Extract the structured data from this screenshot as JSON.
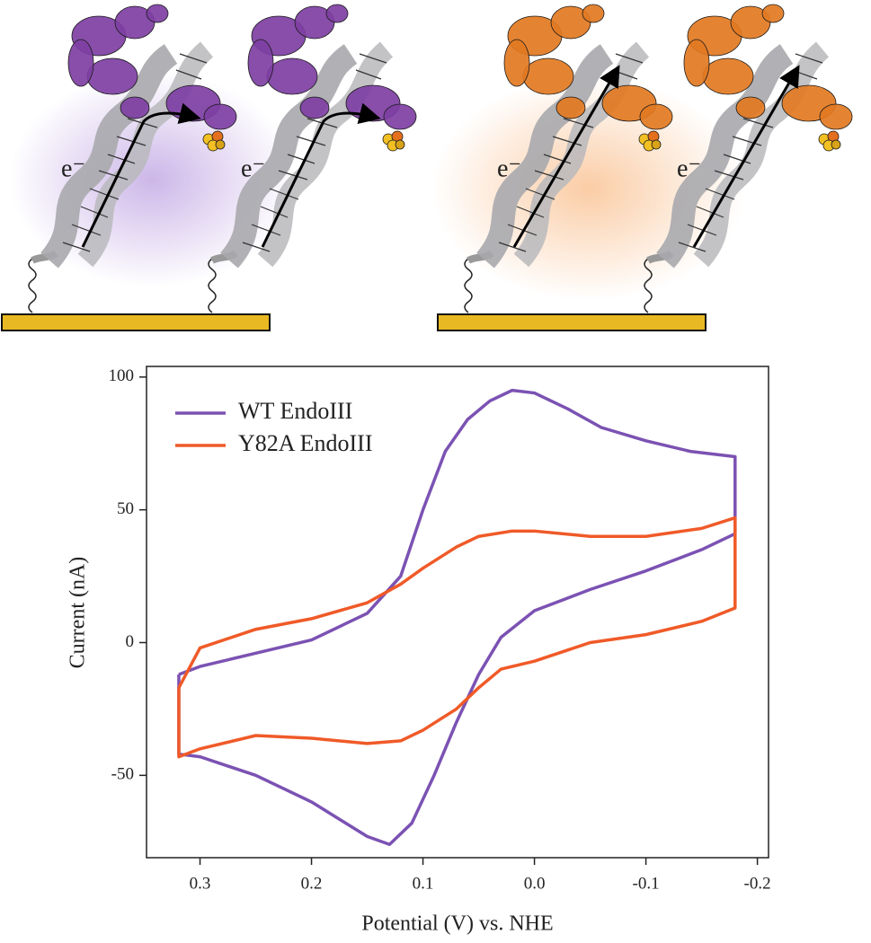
{
  "illustration": {
    "electron_labels": [
      "e⁻",
      "e⁻",
      "e⁻",
      "e⁻"
    ]
  },
  "chart_data": {
    "type": "line",
    "xlabel": "Potential (V) vs. NHE",
    "ylabel": "Current (nA)",
    "xlim": [
      0.348,
      -0.21
    ],
    "ylim": [
      -81,
      104
    ],
    "xticks": [
      0.3,
      0.2,
      0.1,
      {
        "value": 0,
        "label": "0.0"
      },
      -0.1,
      -0.2
    ],
    "yticks": [
      -50,
      0,
      50,
      100
    ],
    "legend": "upper left",
    "series": [
      {
        "name": "WT EndoIII",
        "color": "#7b52b3",
        "x": [
          0.319,
          0.3,
          0.25,
          0.2,
          0.15,
          0.12,
          0.1,
          0.08,
          0.06,
          0.04,
          0.02,
          0.0,
          -0.03,
          -0.06,
          -0.1,
          -0.14,
          -0.18,
          -0.18,
          -0.15,
          -0.1,
          -0.05,
          0.0,
          0.03,
          0.05,
          0.07,
          0.09,
          0.11,
          0.13,
          0.15,
          0.2,
          0.25,
          0.3,
          0.319,
          0.319
        ],
        "values": [
          -12,
          -9,
          -4,
          1,
          11,
          25,
          50,
          72,
          84,
          91,
          95,
          94,
          88,
          81,
          76,
          72,
          70,
          41,
          35,
          27,
          20,
          12,
          2,
          -12,
          -30,
          -50,
          -68,
          -76,
          -73,
          -60,
          -50,
          -43,
          -42,
          -12
        ]
      },
      {
        "name": "Y82A EndoIII",
        "color": "#f05a28",
        "x": [
          0.319,
          0.3,
          0.25,
          0.2,
          0.15,
          0.12,
          0.1,
          0.07,
          0.05,
          0.02,
          0.0,
          -0.05,
          -0.1,
          -0.15,
          -0.18,
          -0.18,
          -0.18,
          -0.15,
          -0.1,
          -0.05,
          0.0,
          0.03,
          0.05,
          0.07,
          0.1,
          0.12,
          0.15,
          0.2,
          0.25,
          0.3,
          0.319,
          0.319
        ],
        "values": [
          -17,
          -2,
          5,
          9,
          15,
          22,
          28,
          36,
          40,
          42,
          42,
          40,
          40,
          43,
          47,
          22,
          13,
          8,
          3,
          0,
          -7,
          -10,
          -17,
          -25,
          -33,
          -37,
          -38,
          -36,
          -35,
          -40,
          -43,
          -17
        ]
      }
    ]
  }
}
